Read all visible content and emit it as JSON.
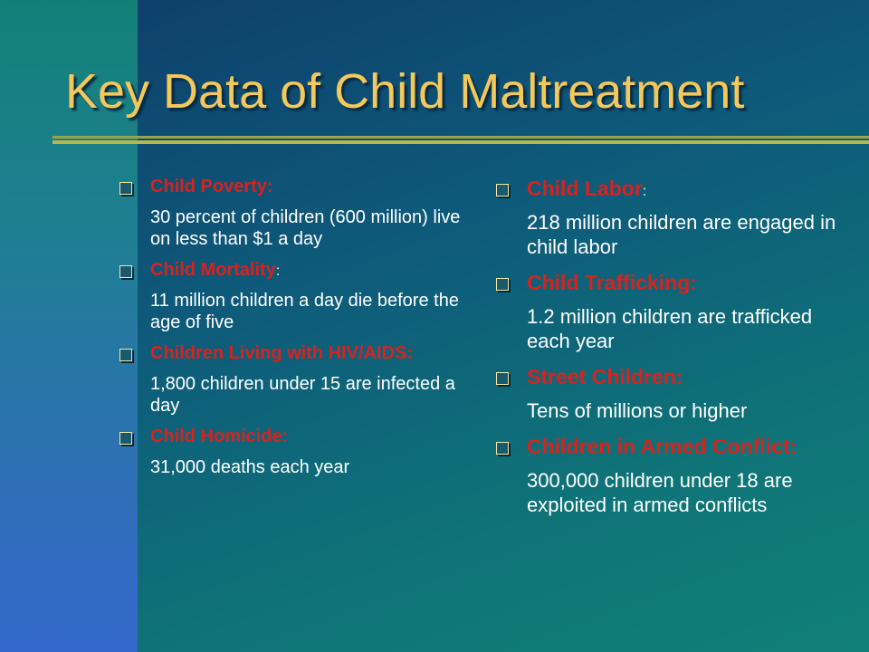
{
  "slide": {
    "title": "Key Data of Child Maltreatment",
    "left_items": [
      {
        "heading": "Child Poverty:",
        "suffix": "",
        "text": "30 percent of children (600 million) live on less than $1 a day"
      },
      {
        "heading": "Child Mortality",
        "suffix": ":",
        "text": "11 million children a day die before the age of five"
      },
      {
        "heading": "Children Living with HIV/AIDS:",
        "suffix": "",
        "text": "1,800 children under 15 are infected a day"
      },
      {
        "heading": "Child Homicide:",
        "suffix": "",
        "text": "31,000 deaths each year"
      }
    ],
    "right_items": [
      {
        "heading": "Child Labor",
        "suffix": ":",
        "text": "218 million children are engaged in child labor"
      },
      {
        "heading": "Child Trafficking:",
        "suffix": "",
        "text": "1.2 million children are trafficked each year"
      },
      {
        "heading": "Street Children:",
        "suffix": "",
        "text": "Tens of millions or higher"
      },
      {
        "heading": "Children in Armed Conflict:",
        "suffix": "",
        "text": "300,000 children under 18 are exploited in armed conflicts"
      }
    ]
  },
  "colors": {
    "title": "#f4c85a",
    "heading": "#d8221e",
    "body_text": "#ffffff"
  },
  "icons": {
    "bullet": "hollow-square-bullet-icon"
  }
}
